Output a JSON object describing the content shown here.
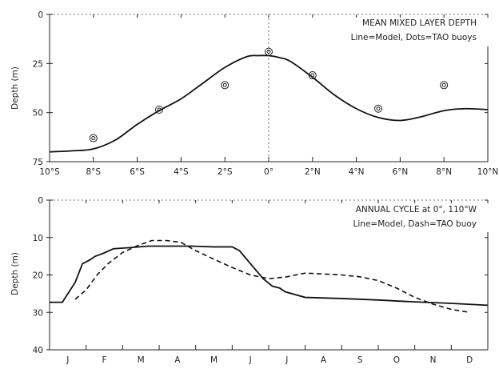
{
  "chart_data": [
    {
      "type": "line",
      "title_lines": [
        "MEAN MIXED LAYER DEPTH",
        "Line=Model, Dots=TAO buoys"
      ],
      "ylabel": "Depth (m)",
      "xlim": [
        -10,
        10
      ],
      "ylim": [
        75,
        0
      ],
      "x_ticks": [
        -10,
        -8,
        -6,
        -4,
        -2,
        0,
        2,
        4,
        6,
        8,
        10
      ],
      "x_tick_labels": [
        "10°S",
        "8°S",
        "6°S",
        "4°S",
        "2°S",
        "0°",
        "2°N",
        "4°N",
        "6°N",
        "8°N",
        "10°N"
      ],
      "y_ticks": [
        0,
        25,
        50,
        75
      ],
      "y_tick_labels": [
        "0",
        "25",
        "50",
        "75"
      ],
      "series": [
        {
          "style": "solid",
          "x": [
            -10,
            -9,
            -8,
            -7,
            -6,
            -5,
            -4,
            -3,
            -2,
            -1,
            -0.5,
            0,
            0.5,
            1,
            2,
            3,
            4,
            5,
            6,
            7,
            8,
            9,
            10
          ],
          "y": [
            70,
            69.5,
            68.5,
            64,
            56,
            49,
            43,
            35,
            27,
            21.5,
            21,
            21,
            22,
            24,
            32,
            41,
            48,
            52.5,
            54,
            52,
            49,
            48,
            48.5
          ]
        },
        {
          "style": "markers",
          "x": [
            -8,
            -5,
            -2,
            0,
            2,
            5,
            8
          ],
          "y": [
            63,
            48.5,
            36,
            19,
            31,
            48,
            36
          ]
        }
      ]
    },
    {
      "type": "line",
      "title_lines": [
        "ANNUAL CYCLE at 0°, 110°W",
        "Line=Model, Dash=TAO buoy"
      ],
      "ylabel": "Depth (m)",
      "xlim": [
        0,
        12
      ],
      "ylim": [
        40,
        0
      ],
      "categories": [
        "J",
        "F",
        "M",
        "A",
        "M",
        "J",
        "J",
        "A",
        "S",
        "O",
        "N",
        "D"
      ],
      "y_ticks": [
        0,
        10,
        20,
        30,
        40
      ],
      "y_tick_labels": [
        "0",
        "10",
        "20",
        "30",
        "40"
      ],
      "series": [
        {
          "style": "solid",
          "x": [
            0,
            0.35,
            0.7,
            0.9,
            1.1,
            1.25,
            1.45,
            1.75,
            2.2,
            2.7,
            3.3,
            3.9,
            4.5,
            5.0,
            5.2,
            5.5,
            5.85,
            6.1,
            6.3,
            6.45,
            7.0,
            8.0,
            9.0,
            10.0,
            11.0,
            12.0
          ],
          "y": [
            27.3,
            27.3,
            22,
            17,
            16,
            15,
            14.3,
            13,
            12.7,
            12.3,
            12.3,
            12.3,
            12.5,
            12.5,
            13.5,
            17,
            21,
            23,
            23.5,
            24.5,
            26,
            26.3,
            26.7,
            27.2,
            27.6,
            28.1
          ]
        },
        {
          "style": "dashed",
          "x": [
            0.7,
            1.0,
            1.3,
            1.6,
            2.0,
            2.4,
            2.8,
            3.2,
            3.6,
            4.0,
            4.5,
            5.0,
            5.5,
            6.0,
            6.5,
            7.0,
            8.0,
            8.5,
            9.0,
            9.5,
            10.0,
            10.5,
            11.0,
            11.5
          ],
          "y": [
            26.5,
            24,
            20,
            17,
            14,
            12.2,
            10.8,
            10.8,
            11.3,
            13.5,
            15.8,
            18,
            20,
            21,
            20.5,
            19.5,
            20,
            20.5,
            21.5,
            23.5,
            26,
            27.8,
            29.2,
            30
          ]
        }
      ]
    }
  ]
}
